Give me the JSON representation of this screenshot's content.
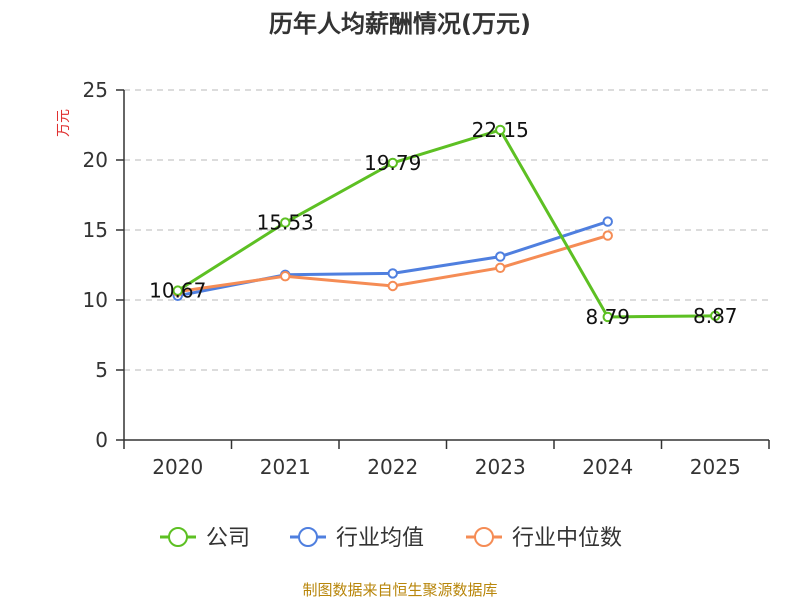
{
  "chart_data": {
    "type": "line",
    "title": "历年人均薪酬情况(万元)",
    "ylabel": "万元",
    "xlabel": "",
    "categories": [
      "2020",
      "2021",
      "2022",
      "2023",
      "2024",
      "2025"
    ],
    "yticks": [
      "0",
      "5",
      "10",
      "15",
      "20",
      "25"
    ],
    "ylim": [
      0,
      25
    ],
    "grid": true,
    "legend_position": "bottom",
    "series": [
      {
        "name": "公司",
        "color": "#5dc023",
        "values": [
          10.67,
          15.53,
          19.79,
          22.15,
          8.79,
          8.87
        ],
        "labels": [
          "10.67",
          "15.53",
          "19.79",
          "22.15",
          "8.79",
          "8.87"
        ]
      },
      {
        "name": "行业均值",
        "color": "#4f7fdf",
        "values": [
          10.3,
          11.8,
          11.9,
          13.1,
          15.6,
          null
        ]
      },
      {
        "name": "行业中位数",
        "color": "#f58c55",
        "values": [
          10.6,
          11.7,
          11.0,
          12.3,
          14.6,
          null
        ]
      }
    ]
  },
  "footer": {
    "source": "制图数据来自恒生聚源数据库",
    "source_color": "#b8860b"
  }
}
